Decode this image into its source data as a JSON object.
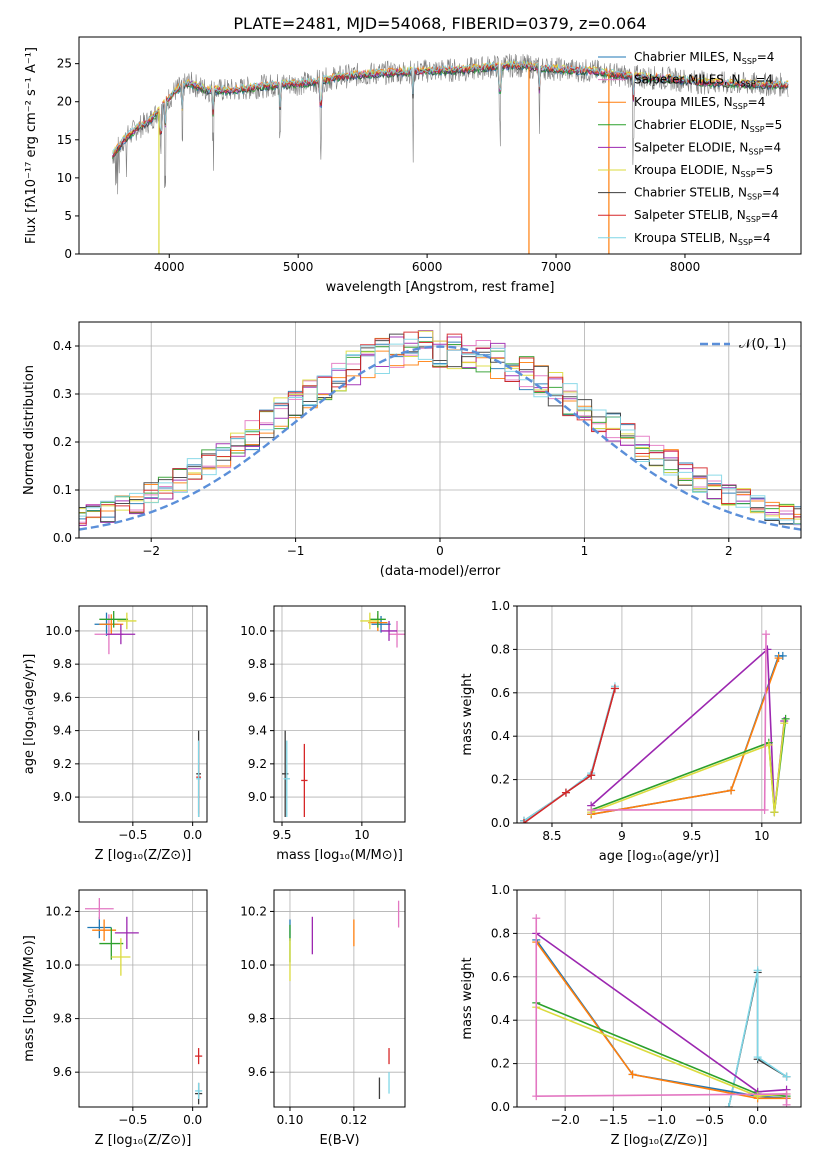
{
  "figure_title": "PLATE=2481, MJD=54068, FIBERID=0379, z=0.064",
  "colors": {
    "chabrier_miles": "#1f77b4",
    "salpeter_miles": "#e377c2",
    "kroupa_miles": "#ff7f0e",
    "chabrier_elodie": "#2ca02c",
    "salpeter_elodie": "#9c27b0",
    "kroupa_elodie": "#dbdb3d",
    "chabrier_stelib": "#3d3d3d",
    "salpeter_stelib": "#d62728",
    "kroupa_stelib": "#7fd6e6",
    "normal_curve": "#5b8fd9",
    "grid": "#b0b0b0"
  },
  "chart_data": [
    {
      "id": "spectrum",
      "type": "line",
      "xlabel": "wavelength [Angstrom, rest frame]",
      "ylabel": "Flux [fλ10⁻¹⁷ erg cm⁻² s⁻¹ A⁻¹]",
      "xlim": [
        3300,
        8900
      ],
      "ylim": [
        0,
        28.5
      ],
      "xticks": [
        4000,
        5000,
        6000,
        7000,
        8000
      ],
      "yticks": [
        0,
        5,
        10,
        15,
        20,
        25
      ],
      "grid": false,
      "legend_position": "top-right",
      "legend": [
        {
          "label": "Chabrier MILES, N",
          "sub": "SSP",
          "tail": "=4",
          "color": "chabrier_miles"
        },
        {
          "label": "Salpeter MILES, N",
          "sub": "SSP",
          "tail": "=4",
          "color": "salpeter_miles"
        },
        {
          "label": "Kroupa MILES, N",
          "sub": "SSP",
          "tail": "=4",
          "color": "kroupa_miles"
        },
        {
          "label": "Chabrier ELODIE, N",
          "sub": "SSP",
          "tail": "=5",
          "color": "chabrier_elodie"
        },
        {
          "label": "Salpeter ELODIE, N",
          "sub": "SSP",
          "tail": "=4",
          "color": "salpeter_elodie"
        },
        {
          "label": "Kroupa ELODIE, N",
          "sub": "SSP",
          "tail": "=5",
          "color": "kroupa_elodie"
        },
        {
          "label": "Chabrier STELIB, N",
          "sub": "SSP",
          "tail": "=4",
          "color": "chabrier_stelib"
        },
        {
          "label": "Salpeter STELIB, N",
          "sub": "SSP",
          "tail": "=4",
          "color": "salpeter_stelib"
        },
        {
          "label": "Kroupa STELIB, N",
          "sub": "SSP",
          "tail": "=4",
          "color": "kroupa_stelib"
        }
      ],
      "continuum": {
        "x": [
          3560,
          3650,
          3750,
          3850,
          3950,
          4050,
          4150,
          4300,
          4500,
          4700,
          4900,
          5100,
          5300,
          5500,
          5700,
          5900,
          6100,
          6300,
          6500,
          6700,
          6900,
          7100,
          7300,
          7500,
          7700,
          7900,
          8100,
          8300,
          8500,
          8800
        ],
        "y": [
          13,
          15,
          16.5,
          17.5,
          19.5,
          21.5,
          22.5,
          21.5,
          21.5,
          22,
          22.3,
          22.5,
          23.2,
          23.6,
          23.8,
          24,
          24.1,
          24.2,
          24.6,
          24.8,
          24.4,
          24.2,
          24,
          23.5,
          23.2,
          23,
          22.6,
          22.4,
          22.3,
          22.2
        ]
      },
      "drops": [
        {
          "x": 3920,
          "series": "kroupa_elodie",
          "to": 0
        },
        {
          "x": 6790,
          "series": "kroupa_miles",
          "to": 0
        },
        {
          "x": 7410,
          "series": "kroupa_miles",
          "to": 0
        }
      ]
    },
    {
      "id": "residuals",
      "type": "histogram",
      "xlabel": "(data-model)/error",
      "ylabel": "Normed distribution",
      "xlim": [
        -2.5,
        2.5
      ],
      "ylim": [
        0,
        0.45
      ],
      "xticks": [
        -2,
        -1,
        0,
        1,
        2
      ],
      "yticks": [
        0.0,
        0.1,
        0.2,
        0.3,
        0.4
      ],
      "grid": true,
      "legend_position": "top-right",
      "legend": [
        {
          "label": "𝒩(0, 1)",
          "color": "normal_curve",
          "style": "dashed"
        }
      ],
      "bin_width": 0.1,
      "base": [
        0.03,
        0.035,
        0.04,
        0.045,
        0.05,
        0.055,
        0.065,
        0.075,
        0.09,
        0.105,
        0.12,
        0.14,
        0.155,
        0.175,
        0.195,
        0.215,
        0.24,
        0.26,
        0.28,
        0.3,
        0.32,
        0.34,
        0.355,
        0.37,
        0.38,
        0.39,
        0.4,
        0.4,
        0.395,
        0.39,
        0.385,
        0.38,
        0.37,
        0.355,
        0.345,
        0.33,
        0.31,
        0.29,
        0.27,
        0.25,
        0.23,
        0.21,
        0.19,
        0.17,
        0.155,
        0.135,
        0.12,
        0.105,
        0.09,
        0.08,
        0.07,
        0.06,
        0.05,
        0.045,
        0.04,
        0.035,
        0.03
      ]
    },
    {
      "id": "age_vs_Z",
      "type": "scatter",
      "xlabel": "Z [log₁₀(Z/Z⊙)]",
      "ylabel": "age  [log₁₀(age/yr)]",
      "xlim": [
        -0.95,
        0.12
      ],
      "ylim": [
        8.85,
        10.15
      ],
      "xticks": [
        -0.5,
        0.0
      ],
      "xticklabels": [
        "−0.5",
        "0.0"
      ],
      "yticks": [
        9.0,
        9.2,
        9.4,
        9.6,
        9.8,
        10.0
      ],
      "grid": true,
      "points": [
        {
          "x": -0.72,
          "y": 10.04,
          "xerr": 0.1,
          "yerr": 0.07,
          "series": "chabrier_miles"
        },
        {
          "x": -0.7,
          "y": 9.98,
          "xerr": 0.12,
          "yerr": 0.12,
          "series": "salpeter_miles"
        },
        {
          "x": -0.68,
          "y": 10.04,
          "xerr": 0.1,
          "yerr": 0.06,
          "series": "kroupa_miles"
        },
        {
          "x": -0.66,
          "y": 10.07,
          "xerr": 0.12,
          "yerr": 0.05,
          "series": "chabrier_elodie"
        },
        {
          "x": -0.6,
          "y": 9.98,
          "xerr": 0.12,
          "yerr": 0.06,
          "series": "salpeter_elodie"
        },
        {
          "x": -0.55,
          "y": 10.06,
          "xerr": 0.08,
          "yerr": 0.05,
          "series": "kroupa_elodie"
        },
        {
          "x": 0.05,
          "y": 9.14,
          "xerr": 0.02,
          "yerr": 0.26,
          "series": "chabrier_stelib"
        },
        {
          "x": 0.05,
          "y": 9.12,
          "xerr": 0.02,
          "yerr": 0.22,
          "series": "salpeter_stelib"
        },
        {
          "x": 0.05,
          "y": 9.11,
          "xerr": 0.02,
          "yerr": 0.23,
          "series": "kroupa_stelib"
        }
      ]
    },
    {
      "id": "age_vs_mass",
      "type": "scatter",
      "xlabel": "mass [log₁₀(M/M⊙)]",
      "ylabel": "",
      "xlim": [
        9.45,
        10.27
      ],
      "ylim": [
        8.85,
        10.15
      ],
      "xticks": [
        9.5,
        10.0
      ],
      "yticks": [
        9.0,
        9.2,
        9.4,
        9.6,
        9.8,
        10.0
      ],
      "grid": true,
      "points": [
        {
          "x": 10.12,
          "y": 10.04,
          "xerr": 0.06,
          "yerr": 0.05,
          "series": "chabrier_miles"
        },
        {
          "x": 10.22,
          "y": 9.98,
          "xerr": 0.05,
          "yerr": 0.08,
          "series": "salpeter_miles"
        },
        {
          "x": 10.1,
          "y": 10.05,
          "xerr": 0.06,
          "yerr": 0.05,
          "series": "kroupa_miles"
        },
        {
          "x": 10.1,
          "y": 10.07,
          "xerr": 0.05,
          "yerr": 0.05,
          "series": "chabrier_elodie"
        },
        {
          "x": 10.17,
          "y": 10.0,
          "xerr": 0.05,
          "yerr": 0.06,
          "series": "salpeter_elodie"
        },
        {
          "x": 10.05,
          "y": 10.06,
          "xerr": 0.06,
          "yerr": 0.05,
          "series": "kroupa_elodie"
        },
        {
          "x": 9.52,
          "y": 9.14,
          "xerr": 0.02,
          "yerr": 0.26,
          "series": "chabrier_stelib"
        },
        {
          "x": 9.64,
          "y": 9.1,
          "xerr": 0.02,
          "yerr": 0.22,
          "series": "salpeter_stelib"
        },
        {
          "x": 9.53,
          "y": 9.11,
          "xerr": 0.02,
          "yerr": 0.23,
          "series": "kroupa_stelib"
        }
      ]
    },
    {
      "id": "weight_vs_age",
      "type": "line",
      "xlabel": "age  [log₁₀(age/yr)]",
      "ylabel": "mass weight",
      "xlim": [
        8.25,
        10.28
      ],
      "ylim": [
        0,
        1
      ],
      "xticks": [
        8.5,
        9.0,
        9.5,
        10.0
      ],
      "yticks": [
        0.0,
        0.2,
        0.4,
        0.6,
        0.8,
        1.0
      ],
      "grid": true,
      "series": [
        {
          "series": "chabrier_stelib",
          "x": [
            8.3,
            8.6,
            8.78,
            8.95
          ],
          "y": [
            0.01,
            0.14,
            0.22,
            0.62
          ]
        },
        {
          "series": "kroupa_stelib",
          "x": [
            8.3,
            8.6,
            8.78,
            8.95
          ],
          "y": [
            0.01,
            0.14,
            0.23,
            0.63
          ]
        },
        {
          "series": "salpeter_stelib",
          "x": [
            8.3,
            8.6,
            8.78,
            8.95
          ],
          "y": [
            0.0,
            0.14,
            0.22,
            0.62
          ]
        },
        {
          "series": "chabrier_miles",
          "x": [
            8.78,
            9.78,
            10.12,
            10.15
          ],
          "y": [
            0.04,
            0.15,
            0.77,
            0.77
          ]
        },
        {
          "series": "kroupa_miles",
          "x": [
            8.78,
            9.78,
            10.12
          ],
          "y": [
            0.04,
            0.15,
            0.76
          ]
        },
        {
          "series": "salpeter_elodie",
          "x": [
            8.78,
            10.04,
            10.09,
            10.16
          ],
          "y": [
            0.08,
            0.8,
            0.05,
            0.47
          ]
        },
        {
          "series": "chabrier_elodie",
          "x": [
            8.78,
            10.05,
            10.09,
            10.17
          ],
          "y": [
            0.06,
            0.37,
            0.05,
            0.48
          ]
        },
        {
          "series": "kroupa_elodie",
          "x": [
            8.78,
            10.05,
            10.09,
            10.16
          ],
          "y": [
            0.05,
            0.36,
            0.05,
            0.46
          ]
        },
        {
          "series": "salpeter_miles",
          "x": [
            8.78,
            10.02,
            10.03
          ],
          "y": [
            0.06,
            0.06,
            0.87
          ]
        }
      ]
    },
    {
      "id": "mass_vs_Z",
      "type": "scatter",
      "xlabel": "Z [log₁₀(Z/Z⊙)]",
      "ylabel": "mass [log₁₀(M/M⊙)]",
      "xlim": [
        -0.95,
        0.12
      ],
      "ylim": [
        9.47,
        10.28
      ],
      "xticks": [
        -0.5,
        0.0
      ],
      "xticklabels": [
        "−0.5",
        "0.0"
      ],
      "yticks": [
        9.6,
        9.8,
        10.0,
        10.2
      ],
      "grid": true,
      "points": [
        {
          "x": -0.78,
          "y": 10.14,
          "xerr": 0.1,
          "yerr": 0.04,
          "series": "chabrier_miles"
        },
        {
          "x": -0.78,
          "y": 10.21,
          "xerr": 0.12,
          "yerr": 0.04,
          "series": "salpeter_miles"
        },
        {
          "x": -0.74,
          "y": 10.13,
          "xerr": 0.1,
          "yerr": 0.04,
          "series": "kroupa_miles"
        },
        {
          "x": -0.68,
          "y": 10.08,
          "xerr": 0.1,
          "yerr": 0.06,
          "series": "chabrier_elodie"
        },
        {
          "x": -0.55,
          "y": 10.12,
          "xerr": 0.1,
          "yerr": 0.06,
          "series": "salpeter_elodie"
        },
        {
          "x": -0.6,
          "y": 10.03,
          "xerr": 0.08,
          "yerr": 0.07,
          "series": "kroupa_elodie"
        },
        {
          "x": 0.05,
          "y": 9.52,
          "xerr": 0.03,
          "yerr": 0.04,
          "series": "chabrier_stelib"
        },
        {
          "x": 0.05,
          "y": 9.66,
          "xerr": 0.03,
          "yerr": 0.03,
          "series": "salpeter_stelib"
        },
        {
          "x": 0.05,
          "y": 9.53,
          "xerr": 0.03,
          "yerr": 0.03,
          "series": "kroupa_stelib"
        }
      ]
    },
    {
      "id": "mass_vs_ebv",
      "type": "scatter",
      "xlabel": "E(B-V)",
      "ylabel": "",
      "xlim": [
        0.095,
        0.136
      ],
      "ylim": [
        9.47,
        10.28
      ],
      "xticks": [
        0.1,
        0.12
      ],
      "xticklabels": [
        "0.10",
        "0.12"
      ],
      "yticks": [
        9.6,
        9.8,
        10.0,
        10.2
      ],
      "grid": true,
      "points": [
        {
          "x": 0.1,
          "y": 10.13,
          "xerr": 0.0,
          "yerr": 0.04,
          "series": "chabrier_miles"
        },
        {
          "x": 0.134,
          "y": 10.19,
          "xerr": 0.0,
          "yerr": 0.05,
          "series": "salpeter_miles"
        },
        {
          "x": 0.12,
          "y": 10.12,
          "xerr": 0.0,
          "yerr": 0.05,
          "series": "kroupa_miles"
        },
        {
          "x": 0.1,
          "y": 10.08,
          "xerr": 0.0,
          "yerr": 0.07,
          "series": "chabrier_elodie"
        },
        {
          "x": 0.107,
          "y": 10.11,
          "xerr": 0.0,
          "yerr": 0.07,
          "series": "salpeter_elodie"
        },
        {
          "x": 0.1,
          "y": 10.02,
          "xerr": 0.0,
          "yerr": 0.08,
          "series": "kroupa_elodie"
        },
        {
          "x": 0.128,
          "y": 9.54,
          "xerr": 0.0,
          "yerr": 0.04,
          "series": "chabrier_stelib"
        },
        {
          "x": 0.131,
          "y": 9.66,
          "xerr": 0.0,
          "yerr": 0.03,
          "series": "salpeter_stelib"
        },
        {
          "x": 0.131,
          "y": 9.56,
          "xerr": 0.0,
          "yerr": 0.04,
          "series": "kroupa_stelib"
        }
      ]
    },
    {
      "id": "weight_vs_Z",
      "type": "line",
      "xlabel": "Z [log₁₀(Z/Z⊙)]",
      "ylabel": "mass weight",
      "xlim": [
        -2.5,
        0.45
      ],
      "ylim": [
        0,
        1
      ],
      "xticks": [
        -2.0,
        -1.5,
        -1.0,
        -0.5,
        0.0
      ],
      "xticklabels": [
        "−2.0",
        "−1.5",
        "−1.0",
        "−0.5",
        "0.0"
      ],
      "yticks": [
        0.0,
        0.2,
        0.4,
        0.6,
        0.8,
        1.0
      ],
      "grid": true,
      "series": [
        {
          "series": "chabrier_stelib",
          "x": [
            -0.3,
            0.0,
            0.0,
            0.3
          ],
          "y": [
            0.0,
            0.62,
            0.22,
            0.14
          ]
        },
        {
          "series": "kroupa_stelib",
          "x": [
            -0.3,
            0.0,
            0.0,
            0.3
          ],
          "y": [
            0.0,
            0.63,
            0.23,
            0.14
          ]
        },
        {
          "series": "salpeter_elodie",
          "x": [
            -2.3,
            0.0,
            0.3
          ],
          "y": [
            0.8,
            0.07,
            0.08
          ]
        },
        {
          "series": "chabrier_miles",
          "x": [
            -2.3,
            -1.3,
            0.0,
            0.3
          ],
          "y": [
            0.77,
            0.15,
            0.05,
            0.04
          ]
        },
        {
          "series": "kroupa_miles",
          "x": [
            -2.3,
            -1.3,
            0.0,
            0.3
          ],
          "y": [
            0.76,
            0.15,
            0.04,
            0.04
          ]
        },
        {
          "series": "chabrier_elodie",
          "x": [
            -2.3,
            0.0,
            0.3
          ],
          "y": [
            0.48,
            0.06,
            0.05
          ]
        },
        {
          "series": "kroupa_elodie",
          "x": [
            -2.3,
            0.0,
            0.3
          ],
          "y": [
            0.46,
            0.05,
            0.06
          ]
        },
        {
          "series": "salpeter_miles",
          "x": [
            -2.3,
            -2.3,
            0.3,
            0.3
          ],
          "y": [
            0.87,
            0.05,
            0.06,
            0.01
          ]
        }
      ]
    }
  ]
}
